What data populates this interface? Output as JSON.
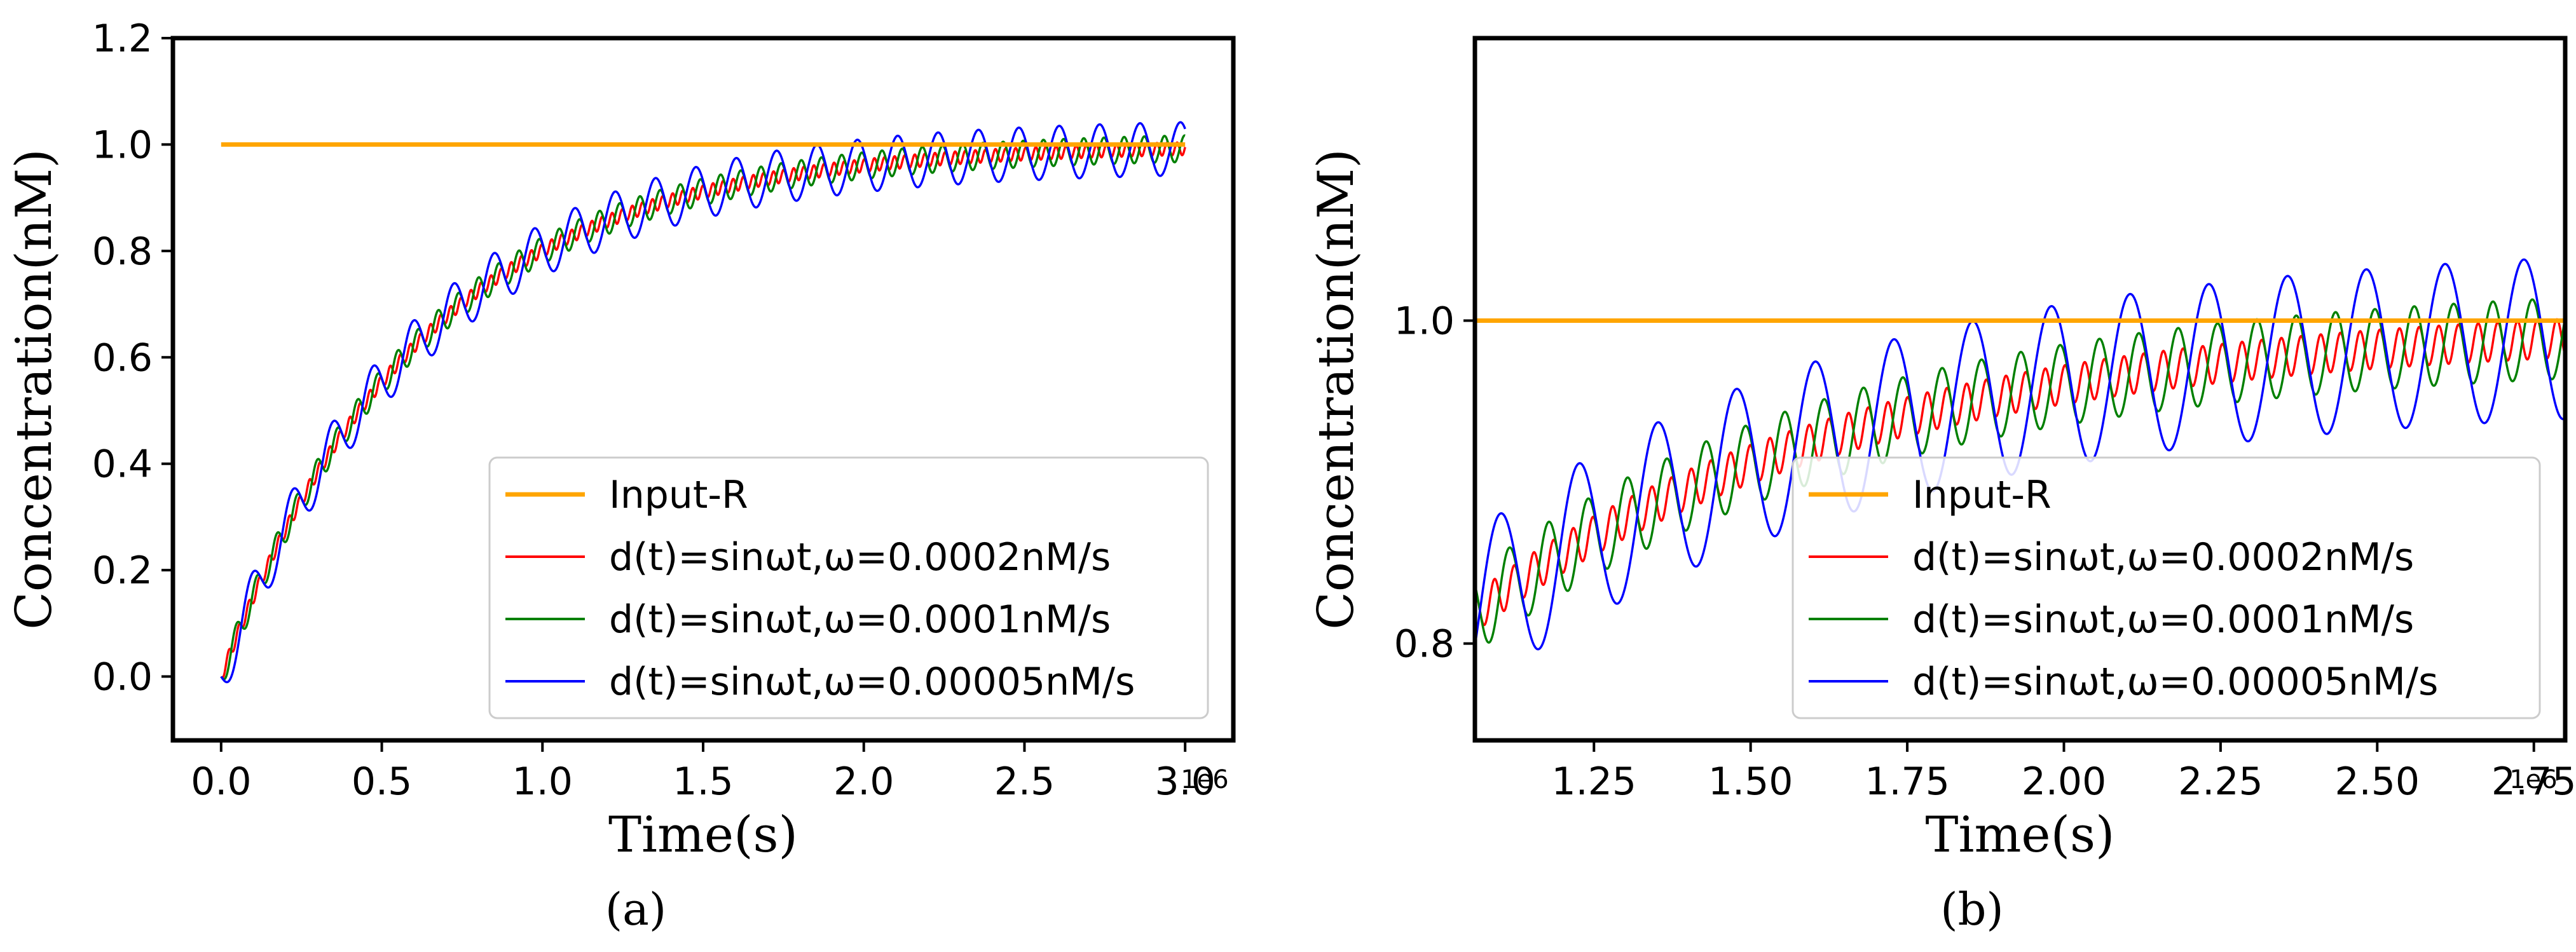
{
  "chart_data": [
    {
      "type": "line",
      "panel_label": "(a)",
      "xlabel": "Time(s)",
      "ylabel": "Concentration(nM)",
      "x_offset_label": "1e6",
      "xlim": [
        -0.15,
        3.15
      ],
      "ylim": [
        -0.12,
        1.2
      ],
      "xticks": [
        0.0,
        0.5,
        1.0,
        1.5,
        2.0,
        2.5,
        3.0
      ],
      "xtick_labels": [
        "0.0",
        "0.5",
        "1.0",
        "1.5",
        "2.0",
        "2.5",
        "3.0"
      ],
      "yticks": [
        0.0,
        0.2,
        0.4,
        0.6,
        0.8,
        1.0,
        1.2
      ],
      "ytick_labels": [
        "0.0",
        "0.2",
        "0.4",
        "0.6",
        "0.8",
        "1.0",
        "1.2"
      ],
      "legend_position": "bottom-right",
      "x_range": [
        0.0,
        3.0
      ],
      "series": [
        {
          "name": "Input-R",
          "color": "#FFA500",
          "kind": "constant",
          "value": 1.0
        },
        {
          "name": "d(t)=sinωt,ω=0.0002nM/s",
          "color": "#ff0000",
          "kind": "response",
          "tau": 0.62,
          "amplitude": 0.012,
          "period": 0.0314
        },
        {
          "name": "d(t)=sinωt,ω=0.0001nM/s",
          "color": "#008000",
          "kind": "response",
          "tau": 0.62,
          "amplitude": 0.025,
          "period": 0.0628
        },
        {
          "name": "d(t)=sinωt,ω=0.00005nM/s",
          "color": "#0000ff",
          "kind": "response",
          "tau": 0.62,
          "amplitude": 0.05,
          "period": 0.1257
        }
      ]
    },
    {
      "type": "line",
      "panel_label": "(b)",
      "xlabel": "Time(s)",
      "ylabel": "Concentration(nM)",
      "x_offset_label": "1e6",
      "xlim": [
        1.06,
        2.8
      ],
      "ylim": [
        0.74,
        1.175
      ],
      "xticks": [
        1.25,
        1.5,
        1.75,
        2.0,
        2.25,
        2.5,
        2.75
      ],
      "xtick_labels": [
        "1.25",
        "1.50",
        "1.75",
        "2.00",
        "2.25",
        "2.50",
        "2.75"
      ],
      "yticks": [
        0.8,
        1.0
      ],
      "ytick_labels": [
        "0.8",
        "1.0"
      ],
      "legend_position": "bottom-right",
      "x_range": [
        1.06,
        2.8
      ],
      "series": [
        {
          "name": "Input-R",
          "color": "#FFA500",
          "kind": "constant",
          "value": 1.0
        },
        {
          "name": "d(t)=sinωt,ω=0.0002nM/s",
          "color": "#ff0000",
          "kind": "response",
          "tau": 0.62,
          "amplitude": 0.012,
          "period": 0.0314
        },
        {
          "name": "d(t)=sinωt,ω=0.0001nM/s",
          "color": "#008000",
          "kind": "response",
          "tau": 0.62,
          "amplitude": 0.025,
          "period": 0.0628
        },
        {
          "name": "d(t)=sinωt,ω=0.00005nM/s",
          "color": "#0000ff",
          "kind": "response",
          "tau": 0.62,
          "amplitude": 0.05,
          "period": 0.1257
        }
      ]
    }
  ]
}
